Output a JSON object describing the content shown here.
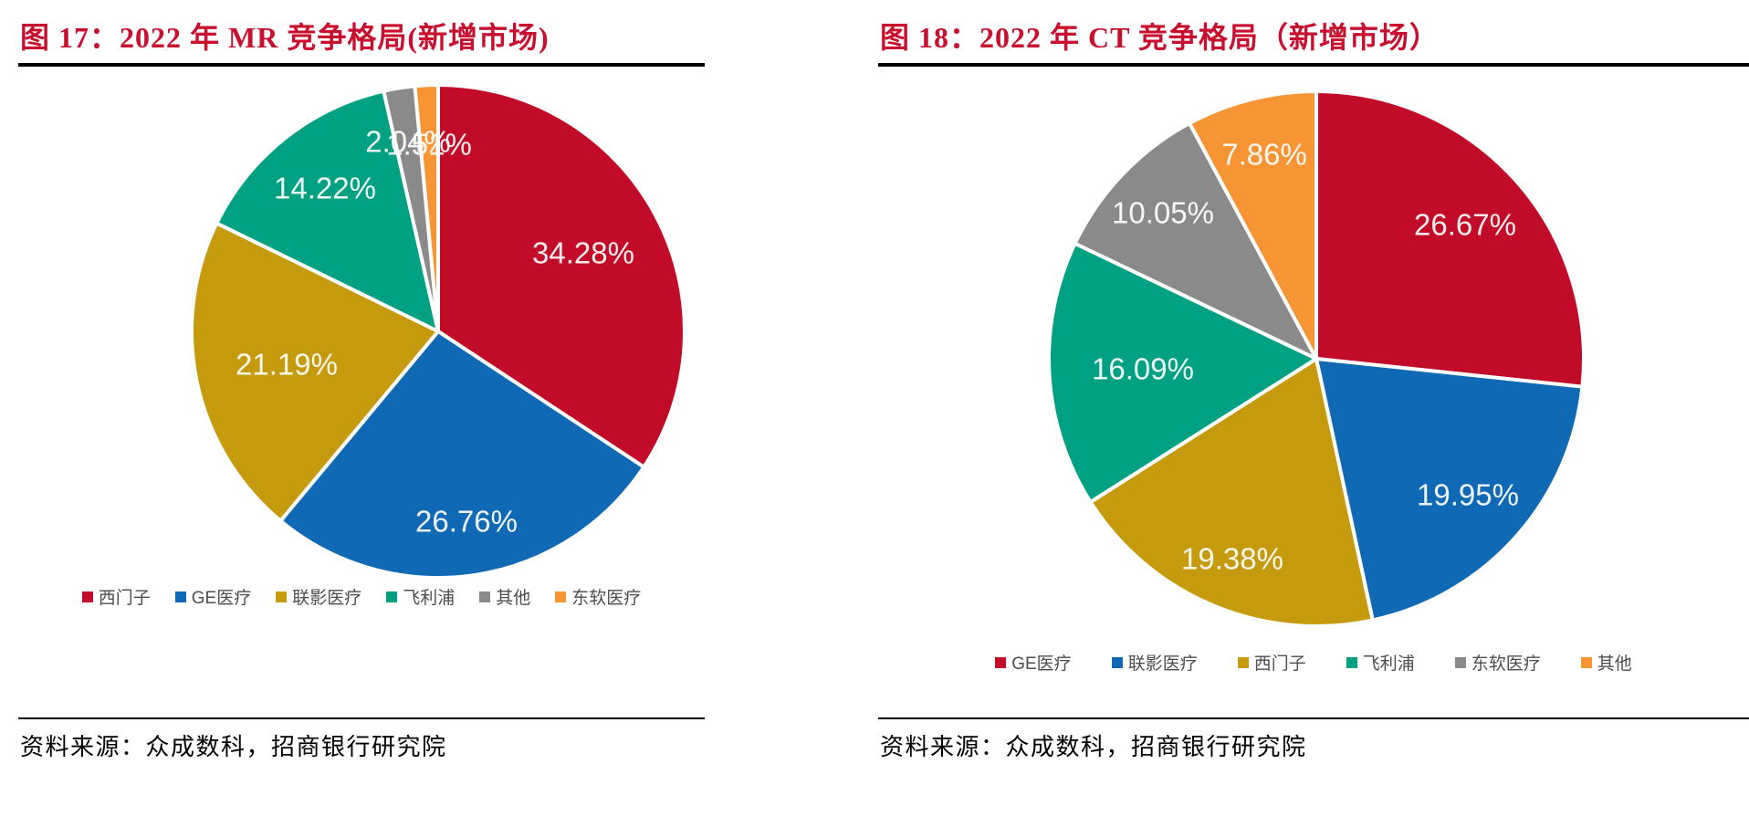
{
  "page": {
    "source_note": "资料来源：众成数科，招商银行研究院",
    "title_color": "#c8102e",
    "rule_color": "#000000",
    "label_color": "#ffffff",
    "legend_text_color": "#4d4d4d"
  },
  "chart_data": [
    {
      "type": "pie",
      "title": "图 17：2022 年 MR 竞争格局(新增市场)",
      "unit": "percent",
      "start_angle_deg": 0,
      "direction": "clockwise",
      "legend_position": "bottom",
      "slices": [
        {
          "label": "西门子",
          "value": 34.28,
          "display": "34.28%",
          "color": "#c20b28"
        },
        {
          "label": "GE医疗",
          "value": 26.76,
          "display": "26.76%",
          "color": "#1069b4"
        },
        {
          "label": "联影医疗",
          "value": 21.19,
          "display": "21.19%",
          "color": "#c69a0d"
        },
        {
          "label": "飞利浦",
          "value": 14.22,
          "display": "14.22%",
          "color": "#00a182"
        },
        {
          "label": "其他",
          "value": 2.04,
          "display": "2.04%",
          "color": "#8a8a8a"
        },
        {
          "label": "东软医疗",
          "value": 1.51,
          "display": "1.51%",
          "color": "#f79434"
        }
      ],
      "source": "资料来源：众成数科，招商银行研究院"
    },
    {
      "type": "pie",
      "title": "图 18：2022 年 CT 竞争格局（新增市场）",
      "unit": "percent",
      "start_angle_deg": 0,
      "direction": "clockwise",
      "legend_position": "bottom",
      "slices": [
        {
          "label": "GE医疗",
          "value": 26.67,
          "display": "26.67%",
          "color": "#c20b28"
        },
        {
          "label": "联影医疗",
          "value": 19.95,
          "display": "19.95%",
          "color": "#1069b4"
        },
        {
          "label": "西门子",
          "value": 19.38,
          "display": "19.38%",
          "color": "#c69a0d"
        },
        {
          "label": "飞利浦",
          "value": 16.09,
          "display": "16.09%",
          "color": "#00a182"
        },
        {
          "label": "东软医疗",
          "value": 10.05,
          "display": "10.05%",
          "color": "#8a8a8a"
        },
        {
          "label": "其他",
          "value": 7.86,
          "display": "7.86%",
          "color": "#f79434"
        }
      ],
      "source": "资料来源：众成数科，招商银行研究院"
    }
  ]
}
